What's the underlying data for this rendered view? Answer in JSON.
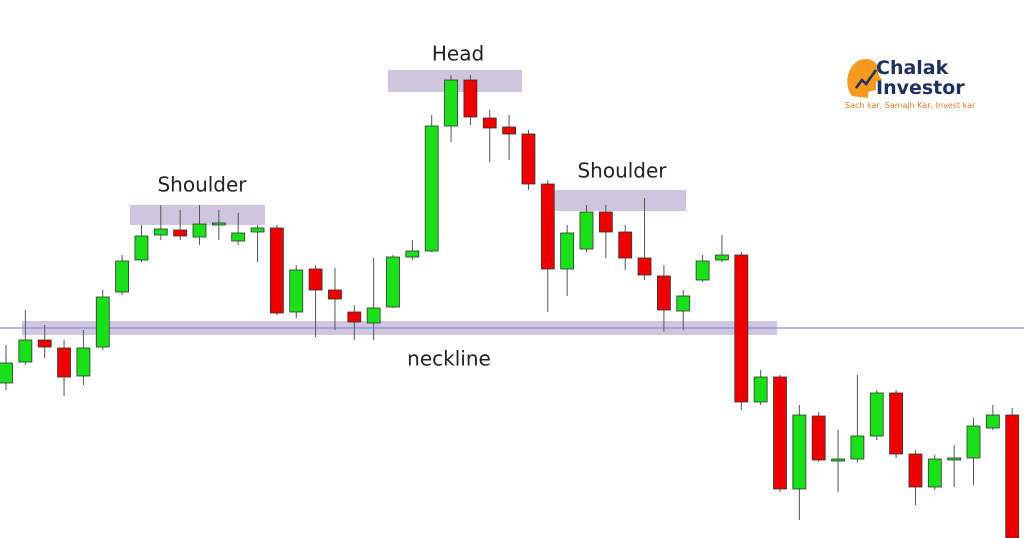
{
  "chart_data": {
    "type": "candlestick",
    "annotations": [
      "Head",
      "Shoulder",
      "Shoulder",
      "neckline"
    ],
    "up_color": "#19e019",
    "down_color": "#ee0000",
    "series": [
      {
        "name": "open",
        "values": [
          155,
          176,
          198,
          190,
          162,
          191,
          246,
          278,
          303,
          308,
          301,
          313,
          297,
          306,
          310,
          226,
          269,
          248,
          226,
          215,
          231,
          281,
          287,
          412,
          458,
          420,
          411,
          404,
          354,
          269,
          289,
          326,
          306,
          280,
          262,
          227,
          258,
          278,
          283,
          136,
          161,
          49,
          122,
          77,
          79,
          102,
          145,
          84,
          51,
          78,
          80,
          110,
          123
        ]
      },
      {
        "name": "high",
        "values": [
          193,
          228,
          213,
          198,
          208,
          248,
          283,
          313,
          333,
          328,
          333,
          328,
          325,
          313,
          313,
          273,
          273,
          270,
          233,
          280,
          283,
          298,
          423,
          463,
          463,
          428,
          423,
          408,
          358,
          313,
          333,
          333,
          313,
          340,
          273,
          248,
          283,
          303,
          286,
          168,
          163,
          133,
          126,
          108,
          163,
          148,
          148,
          88,
          83,
          93,
          120,
          133,
          130
        ]
      },
      {
        "name": "low",
        "values": [
          148,
          173,
          180,
          142,
          153,
          188,
          243,
          276,
          298,
          298,
          293,
          298,
          293,
          276,
          223,
          220,
          201,
          208,
          198,
          198,
          230,
          278,
          286,
          396,
          413,
          376,
          378,
          348,
          226,
          242,
          286,
          280,
          268,
          258,
          206,
          208,
          256,
          276,
          128,
          133,
          46,
          18,
          76,
          46,
          76,
          98,
          80,
          33,
          48,
          51,
          53,
          108,
          -2
        ]
      },
      {
        "name": "close",
        "values": [
          175,
          198,
          191,
          161,
          190,
          241,
          277,
          302,
          309,
          302,
          314,
          315,
          305,
          310,
          225,
          268,
          248,
          239,
          216,
          230,
          281,
          287,
          412,
          458,
          421,
          410,
          404,
          354,
          269,
          305,
          326,
          306,
          280,
          263,
          228,
          242,
          277,
          283,
          136,
          161,
          49,
          123,
          78,
          79,
          102,
          145,
          84,
          51,
          79,
          80,
          112,
          123,
          0
        ]
      }
    ]
  },
  "logo": {
    "line1": "Chalak",
    "line2": "Investor",
    "tagline": "Sach kar, Samajh Kar, Invest kar"
  }
}
